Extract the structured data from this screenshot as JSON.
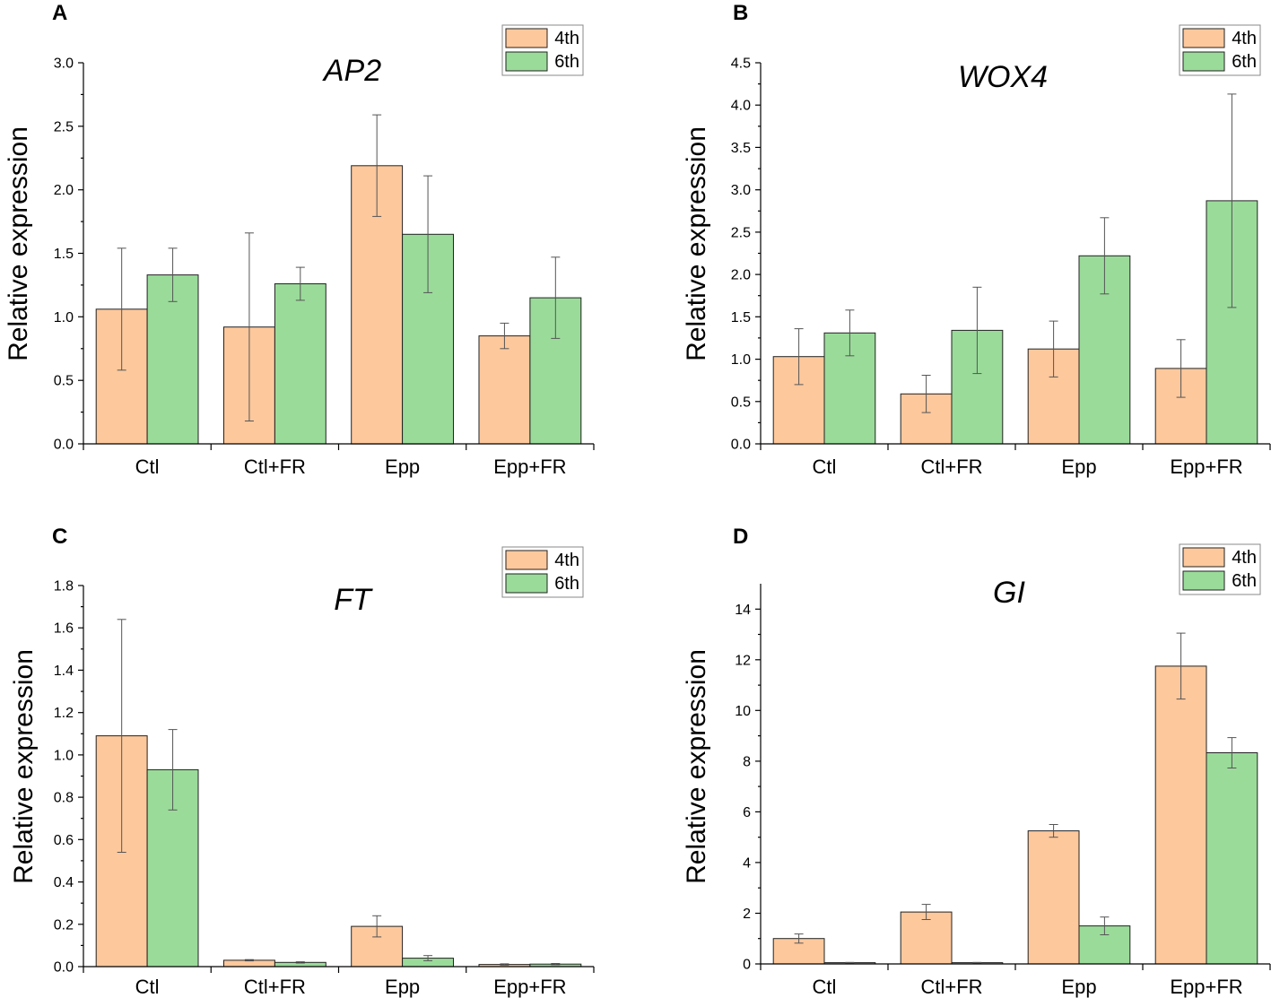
{
  "colors": {
    "series_4th": "#FDC89C",
    "series_6th": "#9ADB9A",
    "edge": "#222222"
  },
  "chart_data": [
    {
      "panel": "A",
      "type": "bar",
      "title": "AP2",
      "xlabel": "",
      "ylabel": "Relative expression",
      "categories": [
        "Ctl",
        "Ctl+FR",
        "Epp",
        "Epp+FR"
      ],
      "ylim": [
        0,
        3.0
      ],
      "yticks": [
        0.0,
        0.5,
        1.0,
        1.5,
        2.0,
        2.5,
        3.0
      ],
      "ytick_labels": [
        "0.0",
        "0.5",
        "1.0",
        "1.5",
        "2.0",
        "2.5",
        "3.0"
      ],
      "legend": [
        "4th",
        "6th"
      ],
      "legend_position": "top-right",
      "series": [
        {
          "name": "4th",
          "values": [
            1.06,
            0.92,
            2.19,
            0.85
          ],
          "errors": [
            0.48,
            0.74,
            0.4,
            0.1
          ]
        },
        {
          "name": "6th",
          "values": [
            1.33,
            1.26,
            1.65,
            1.15
          ],
          "errors": [
            0.21,
            0.13,
            0.46,
            0.32
          ]
        }
      ]
    },
    {
      "panel": "B",
      "type": "bar",
      "title": "WOX4",
      "xlabel": "",
      "ylabel": "Relative expression",
      "categories": [
        "Ctl",
        "Ctl+FR",
        "Epp",
        "Epp+FR"
      ],
      "ylim": [
        0,
        4.5
      ],
      "yticks": [
        0.0,
        0.5,
        1.0,
        1.5,
        2.0,
        2.5,
        3.0,
        3.5,
        4.0,
        4.5
      ],
      "ytick_labels": [
        "0.0",
        "0.5",
        "1.0",
        "1.5",
        "2.0",
        "2.5",
        "3.0",
        "3.5",
        "4.0",
        "4.5"
      ],
      "legend": [
        "4th",
        "6th"
      ],
      "legend_position": "top-right",
      "series": [
        {
          "name": "4th",
          "values": [
            1.03,
            0.59,
            1.12,
            0.89
          ],
          "errors": [
            0.33,
            0.22,
            0.33,
            0.34
          ]
        },
        {
          "name": "6th",
          "values": [
            1.31,
            1.34,
            2.22,
            2.87
          ],
          "errors": [
            0.27,
            0.51,
            0.45,
            1.26
          ]
        }
      ]
    },
    {
      "panel": "C",
      "type": "bar",
      "title": "FT",
      "xlabel": "",
      "ylabel": "Relative expression",
      "categories": [
        "Ctl",
        "Ctl+FR",
        "Epp",
        "Epp+FR"
      ],
      "ylim": [
        0,
        1.8
      ],
      "yticks": [
        0.0,
        0.2,
        0.4,
        0.6,
        0.8,
        1.0,
        1.2,
        1.4,
        1.6,
        1.8
      ],
      "ytick_labels": [
        "0.0",
        "0.2",
        "0.4",
        "0.6",
        "0.8",
        "1.0",
        "1.2",
        "1.4",
        "1.6",
        "1.8"
      ],
      "legend": [
        "4th",
        "6th"
      ],
      "legend_position": "top-right",
      "series": [
        {
          "name": "4th",
          "values": [
            1.09,
            0.03,
            0.19,
            0.01
          ],
          "errors": [
            0.55,
            0.003,
            0.05,
            0.003
          ]
        },
        {
          "name": "6th",
          "values": [
            0.93,
            0.02,
            0.04,
            0.012
          ],
          "errors": [
            0.19,
            0.003,
            0.012,
            0.003
          ]
        }
      ]
    },
    {
      "panel": "D",
      "type": "bar",
      "title": "GI",
      "xlabel": "",
      "ylabel": "Relative expression",
      "categories": [
        "Ctl",
        "Ctl+FR",
        "Epp",
        "Epp+FR"
      ],
      "ylim": [
        0,
        15
      ],
      "yticks": [
        0,
        2,
        4,
        6,
        8,
        10,
        12,
        14
      ],
      "ytick_labels": [
        "0",
        "2",
        "4",
        "6",
        "8",
        "10",
        "12",
        "14"
      ],
      "legend": [
        "4th",
        "6th"
      ],
      "legend_position": "top-right",
      "series": [
        {
          "name": "4th",
          "values": [
            1.0,
            2.05,
            5.25,
            11.75
          ],
          "errors": [
            0.18,
            0.3,
            0.25,
            1.3
          ]
        },
        {
          "name": "6th",
          "values": [
            0.05,
            0.05,
            1.5,
            8.33
          ],
          "errors": [
            0.01,
            0.01,
            0.35,
            0.6
          ]
        }
      ]
    }
  ]
}
